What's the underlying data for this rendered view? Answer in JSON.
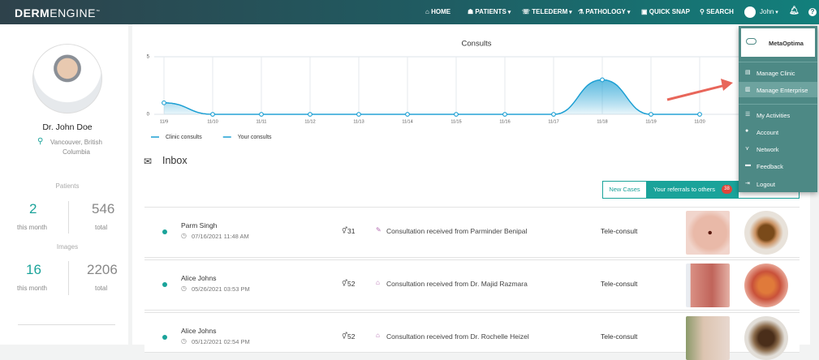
{
  "nav": {
    "brand_bold": "DERM",
    "brand_light": "ENGINE",
    "items": [
      "HOME",
      "PATIENTS",
      "TELEDERM",
      "PATHOLOGY",
      "QUICK SNAP",
      "SEARCH"
    ],
    "user": "John"
  },
  "profile": {
    "name": "Dr. John Doe",
    "location": "Vancouver, British Columbia",
    "patients_label": "Patients",
    "patients_month": 2,
    "patients_total": 546,
    "images_label": "Images",
    "images_month": 16,
    "images_total": 2206,
    "month_label": "this month",
    "total_label": "total"
  },
  "chart_data": {
    "type": "line",
    "title": "Consults",
    "categories": [
      "11/9",
      "11/10",
      "11/11",
      "11/12",
      "11/13",
      "11/14",
      "11/15",
      "11/16",
      "11/17",
      "11/18",
      "11/19",
      "11/20"
    ],
    "series": [
      {
        "name": "Clinic consults",
        "color": "#1c9fd3",
        "values": [
          1,
          0,
          0,
          0,
          0,
          0,
          0,
          0,
          0,
          3,
          0,
          0
        ]
      },
      {
        "name": "Your consults",
        "color": "#1c9fd3",
        "values": [
          1,
          0,
          0,
          0,
          0,
          0,
          0,
          0,
          0,
          3,
          0,
          0
        ]
      }
    ],
    "ylim": [
      0,
      5
    ],
    "yticks": [
      0,
      5
    ],
    "grid": true,
    "legend": "bottom-left"
  },
  "inbox": {
    "title": "Inbox",
    "tabs": [
      "New Cases",
      "Your referrals to others"
    ],
    "badge": 38,
    "rows": [
      {
        "name": "Parm Singh",
        "date": "07/16/2021 11:48 AM",
        "id": 31,
        "message": "Consultation received from Parminder Benipal",
        "type": "Tele-consult"
      },
      {
        "name": "Alice Johns",
        "date": "05/26/2021 03:53 PM",
        "id": 52,
        "message": "Consultation received from Dr. Majid Razmara",
        "type": "Tele-consult"
      },
      {
        "name": "Alice Johns",
        "date": "05/12/2021 02:54 PM",
        "id": 52,
        "message": "Consultation received from Dr. Rochelle Heizel",
        "type": "Tele-consult"
      }
    ]
  },
  "menu": {
    "org": "MetaOptima",
    "items": [
      "Manage Clinic",
      "Manage Enterprise",
      "My Activities",
      "Account",
      "Network",
      "Feedback",
      "Logout"
    ]
  }
}
